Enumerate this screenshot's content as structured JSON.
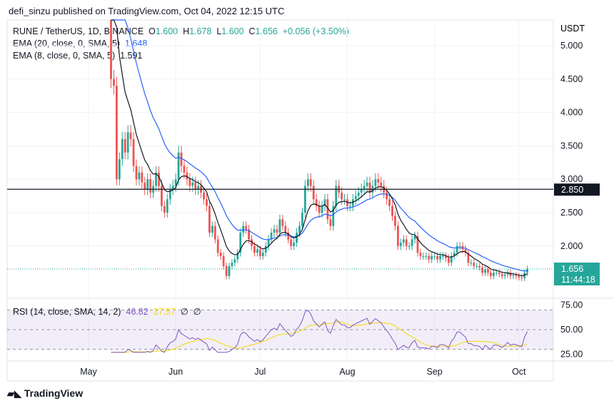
{
  "header": "defi_sinzu published on TradingView.com, Oct 04, 2022 12:15 UTC",
  "symbol": {
    "title": "RUNE / TetherUS, 1D, BINANCE",
    "o_label": "O",
    "o": "1.600",
    "h_label": "H",
    "h": "1.678",
    "l_label": "L",
    "l": "1.600",
    "c_label": "C",
    "c": "1.656",
    "change": "+0.056 (+3.50%)"
  },
  "ema20": {
    "label": "EMA (20, close, 0, SMA, 5)",
    "value": "1.648",
    "color": "#2962ff"
  },
  "ema8": {
    "label": "EMA (8, close, 0, SMA, 5)",
    "value": "1.591",
    "color": "#131722"
  },
  "rsi": {
    "label": "RSI (14, close, SMA, 14, 2)",
    "value": "46.82",
    "sma": "37.57",
    "extra1": "∅",
    "extra2": "∅",
    "color": "#7e57c2",
    "sma_color": "#ffeb3b"
  },
  "footer": "TradingView",
  "chart_data": {
    "type": "candlestick",
    "currency": "USDT",
    "price_ticks": [
      "5.000",
      "4.500",
      "4.000",
      "3.500",
      "3.000",
      "2.500",
      "2.000"
    ],
    "rsi_ticks": [
      "75.00",
      "50.00",
      "25.00"
    ],
    "x_ticks": [
      "May",
      "Jun",
      "Jul",
      "Aug",
      "Sep",
      "Oct"
    ],
    "hline": {
      "value": 2.85,
      "label": "2.850"
    },
    "last_price": {
      "value": "1.656",
      "countdown": "11:44:18"
    },
    "start_date": "2022-05-09",
    "first_open": 5.4,
    "closes": [
      4.5,
      4.4,
      3.0,
      3.3,
      3.6,
      3.4,
      3.7,
      3.6,
      3.2,
      3.0,
      3.1,
      2.95,
      2.85,
      3.0,
      2.8,
      2.9,
      3.1,
      2.9,
      2.6,
      2.5,
      2.7,
      2.85,
      2.9,
      3.0,
      3.4,
      3.2,
      3.1,
      3.0,
      2.9,
      2.95,
      2.85,
      2.9,
      2.8,
      2.7,
      2.6,
      2.2,
      2.3,
      2.1,
      1.9,
      1.85,
      1.7,
      1.55,
      1.7,
      1.75,
      1.8,
      1.9,
      2.2,
      2.3,
      2.25,
      2.1,
      2.0,
      1.9,
      1.95,
      1.85,
      1.9,
      2.0,
      2.1,
      2.2,
      2.25,
      2.2,
      2.4,
      2.3,
      2.2,
      2.1,
      2.0,
      2.05,
      2.2,
      2.3,
      2.5,
      2.9,
      3.0,
      2.9,
      2.7,
      2.6,
      2.5,
      2.6,
      2.7,
      2.4,
      2.3,
      2.6,
      2.9,
      2.8,
      2.7,
      2.7,
      2.6,
      2.6,
      2.7,
      2.75,
      2.8,
      2.85,
      2.9,
      2.95,
      2.8,
      2.9,
      3.0,
      2.95,
      2.9,
      2.8,
      2.7,
      2.6,
      2.45,
      2.3,
      2.0,
      2.05,
      2.1,
      2.0,
      2.0,
      2.1,
      2.15,
      1.9,
      1.85,
      1.85,
      1.85,
      1.8,
      1.85,
      1.85,
      1.8,
      1.85,
      1.85,
      1.82,
      1.75,
      1.85,
      1.9,
      2.0,
      2.0,
      1.95,
      1.9,
      1.75,
      1.75,
      1.7,
      1.7,
      1.68,
      1.6,
      1.65,
      1.6,
      1.55,
      1.6,
      1.6,
      1.58,
      1.55,
      1.57,
      1.6,
      1.55,
      1.56,
      1.55,
      1.53,
      1.52,
      1.6,
      1.656
    ]
  }
}
